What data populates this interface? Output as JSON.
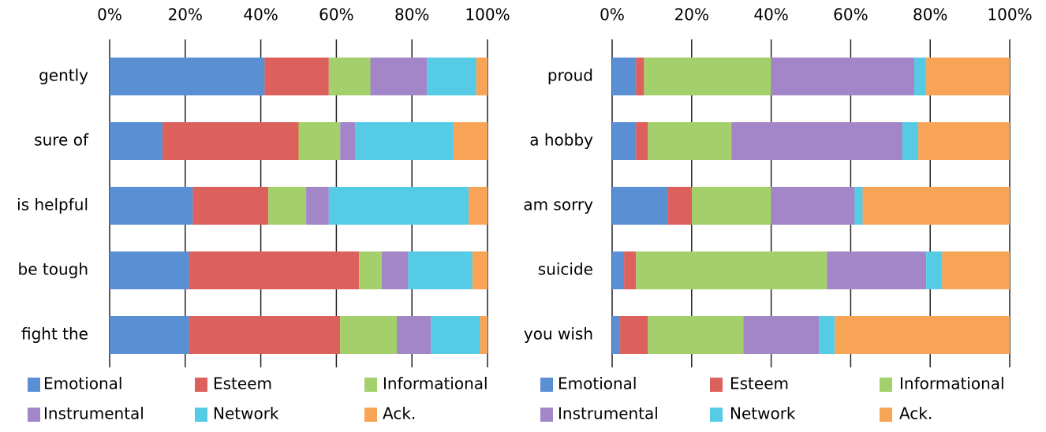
{
  "chart_data": [
    {
      "type": "stacked_barh",
      "categories": [
        "gently",
        "sure of",
        "is helpful",
        "be tough",
        "fight the"
      ],
      "series": [
        {
          "name": "Emotional",
          "color": "#5b8fd4",
          "values": [
            41,
            14,
            22,
            21,
            21
          ]
        },
        {
          "name": "Esteem",
          "color": "#dc605c",
          "values": [
            17,
            36,
            20,
            45,
            40
          ]
        },
        {
          "name": "Informational",
          "color": "#a3d06a",
          "values": [
            11,
            11,
            10,
            6,
            15
          ]
        },
        {
          "name": "Instrumental",
          "color": "#a286c8",
          "values": [
            15,
            4,
            6,
            7,
            9
          ]
        },
        {
          "name": "Network",
          "color": "#55cbe6",
          "values": [
            13,
            26,
            37,
            17,
            13
          ]
        },
        {
          "name": "Ack.",
          "color": "#f8a456",
          "values": [
            3,
            9,
            5,
            4,
            2
          ]
        }
      ],
      "xlim": [
        0,
        100
      ],
      "xticks": [
        {
          "value": 0,
          "label": "0%"
        },
        {
          "value": 20,
          "label": "20%"
        },
        {
          "value": 40,
          "label": "40%"
        },
        {
          "value": 60,
          "label": "60%"
        },
        {
          "value": 80,
          "label": "80%"
        },
        {
          "value": 100,
          "label": "100%"
        }
      ],
      "grid": true,
      "legend": "bottom"
    },
    {
      "type": "stacked_barh",
      "categories": [
        "proud",
        "a hobby",
        "am sorry",
        "suicide",
        "you wish"
      ],
      "series": [
        {
          "name": "Emotional",
          "color": "#5b8fd4",
          "values": [
            6,
            6,
            14,
            3,
            2
          ]
        },
        {
          "name": "Esteem",
          "color": "#dc605c",
          "values": [
            2,
            3,
            6,
            3,
            7
          ]
        },
        {
          "name": "Informational",
          "color": "#a3d06a",
          "values": [
            32,
            21,
            20,
            48,
            24
          ]
        },
        {
          "name": "Instrumental",
          "color": "#a286c8",
          "values": [
            36,
            43,
            21,
            25,
            19
          ]
        },
        {
          "name": "Network",
          "color": "#55cbe6",
          "values": [
            3,
            4,
            2,
            4,
            4
          ]
        },
        {
          "name": "Ack.",
          "color": "#f8a456",
          "values": [
            21,
            23,
            37,
            17,
            44
          ]
        }
      ],
      "xlim": [
        0,
        100
      ],
      "xticks": [
        {
          "value": 0,
          "label": "0%"
        },
        {
          "value": 20,
          "label": "20%"
        },
        {
          "value": 40,
          "label": "40%"
        },
        {
          "value": 60,
          "label": "60%"
        },
        {
          "value": 80,
          "label": "80%"
        },
        {
          "value": 100,
          "label": "100%"
        }
      ],
      "grid": true,
      "legend": "bottom"
    }
  ]
}
